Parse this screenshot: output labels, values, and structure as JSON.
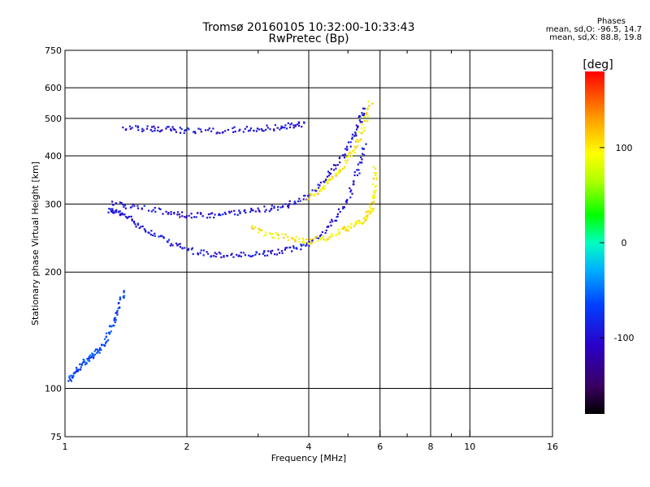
{
  "header": {
    "title": "Tromsø 20160105 10:32:00-10:33:43",
    "subtitle": "RwPretec (Bp)"
  },
  "phase_stats": {
    "title": "Phases",
    "line_o": "mean, sd,O: -96.5, 14.7",
    "line_x": "mean, sd,X:  88.8, 19.8"
  },
  "colorbar": {
    "label": "[deg]",
    "ticks": [
      "100",
      "0",
      "-100"
    ],
    "tick_values": [
      100,
      0,
      -100
    ],
    "range": [
      -180,
      180
    ],
    "colormap": "rainbow (black-purple-blue-cyan-green-yellow-orange-red)"
  },
  "chart_data": {
    "type": "scatter",
    "xlabel": "Frequency [MHz]",
    "ylabel": "Stationary phase Virtual Height [km]",
    "x_scale": "log",
    "y_scale": "log",
    "xlim": [
      1,
      16
    ],
    "ylim": [
      75,
      750
    ],
    "x_ticks": [
      1,
      2,
      4,
      6,
      8,
      10,
      16
    ],
    "y_ticks": [
      75,
      100,
      200,
      300,
      400,
      500,
      600,
      750
    ],
    "grid": true,
    "grid_x": [
      2,
      4,
      6,
      8,
      10
    ],
    "grid_y": [
      100,
      200,
      300,
      400,
      500,
      600
    ],
    "minor_ticks_x": [
      3,
      5,
      7,
      9
    ],
    "color_variable": "Phase [deg]",
    "traces": [
      {
        "description": "o-mode F lower trace (blue)",
        "phase": -100,
        "x": [
          1.28,
          1.35,
          1.45,
          1.6,
          1.8,
          2.0,
          2.3,
          2.6,
          3.0,
          3.4,
          3.8,
          4.2,
          4.6,
          5.0,
          5.3,
          5.5
        ],
        "y": [
          290,
          285,
          275,
          255,
          240,
          228,
          222,
          221,
          222,
          226,
          232,
          245,
          270,
          310,
          370,
          430
        ]
      },
      {
        "description": "o-mode F upper trace (blue)",
        "phase": -100,
        "x": [
          1.3,
          1.5,
          1.8,
          2.0,
          2.3,
          2.6,
          3.0,
          3.4,
          3.8,
          4.2,
          4.6,
          5.0,
          5.3,
          5.5
        ],
        "y": [
          300,
          295,
          285,
          280,
          280,
          285,
          290,
          295,
          305,
          330,
          370,
          420,
          480,
          530
        ]
      },
      {
        "description": "o-mode echo band ~450-500 km (blue)",
        "phase": -100,
        "x": [
          1.4,
          1.6,
          1.8,
          2.0,
          2.4,
          2.8,
          3.2,
          3.6,
          3.9
        ],
        "y": [
          470,
          470,
          468,
          465,
          465,
          468,
          472,
          478,
          485
        ]
      },
      {
        "description": "x-mode trace (yellow)",
        "phase": 100,
        "x": [
          2.9,
          3.2,
          3.6,
          4.0,
          4.4,
          4.8,
          5.2,
          5.5,
          5.7,
          5.8,
          5.85
        ],
        "y": [
          260,
          250,
          245,
          240,
          245,
          255,
          265,
          275,
          290,
          320,
          380
        ]
      },
      {
        "description": "x-mode upper trace (yellow)",
        "phase": 100,
        "x": [
          4.0,
          4.3,
          4.6,
          4.9,
          5.2,
          5.5,
          5.7
        ],
        "y": [
          310,
          330,
          350,
          380,
          420,
          480,
          560
        ]
      },
      {
        "description": "low-frequency cusp (blue/green)",
        "phase": -70,
        "x": [
          1.02,
          1.06,
          1.1,
          1.15,
          1.2,
          1.25,
          1.3,
          1.35,
          1.4
        ],
        "y": [
          105,
          110,
          115,
          120,
          125,
          130,
          145,
          160,
          180
        ]
      }
    ]
  }
}
